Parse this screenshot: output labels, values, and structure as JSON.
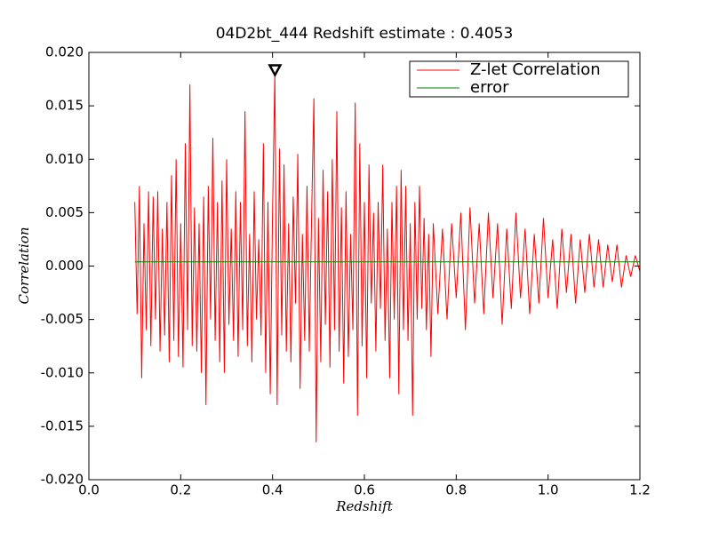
{
  "chart_data": {
    "type": "line",
    "title": "04D2bt_444 Redshift estimate : 0.4053",
    "x_label": "Redshift",
    "y_label": "Correlation",
    "xlim": [
      0,
      1.2
    ],
    "ylim": [
      -0.02,
      0.02
    ],
    "xticks": [
      {
        "value": 0,
        "label": "0.0"
      },
      0.2,
      0.4,
      0.6,
      0.8,
      {
        "value": 1,
        "label": "1.0"
      },
      1.2
    ],
    "yticks": [
      {
        "value": -0.02,
        "label": "-0.020"
      },
      {
        "value": -0.015,
        "label": "-0.015"
      },
      {
        "value": -0.01,
        "label": "-0.010"
      },
      {
        "value": -0.005,
        "label": "-0.005"
      },
      {
        "value": 0,
        "label": "0.000"
      },
      {
        "value": 0.005,
        "label": "0.005"
      },
      {
        "value": 0.01,
        "label": "0.010"
      },
      {
        "value": 0.015,
        "label": "0.015"
      },
      {
        "value": 0.02,
        "label": "0.020"
      }
    ],
    "legend": "upper right",
    "marker": {
      "x": 0.4053,
      "y": 0.0183
    },
    "series": [
      {
        "name": "Z-let Correlation",
        "color": "#ff0000",
        "x": [
          0.1,
          0.105,
          0.11,
          0.115,
          0.12,
          0.125,
          0.13,
          0.135,
          0.14,
          0.145,
          0.15,
          0.155,
          0.16,
          0.165,
          0.17,
          0.175,
          0.18,
          0.185,
          0.19,
          0.195,
          0.2,
          0.205,
          0.21,
          0.215,
          0.22,
          0.225,
          0.23,
          0.235,
          0.24,
          0.245,
          0.25,
          0.255,
          0.26,
          0.265,
          0.27,
          0.275,
          0.28,
          0.285,
          0.29,
          0.295,
          0.3,
          0.305,
          0.31,
          0.315,
          0.32,
          0.325,
          0.33,
          0.335,
          0.34,
          0.345,
          0.35,
          0.355,
          0.36,
          0.365,
          0.37,
          0.375,
          0.38,
          0.385,
          0.39,
          0.395,
          0.4,
          0.405,
          0.41,
          0.415,
          0.42,
          0.425,
          0.43,
          0.435,
          0.44,
          0.445,
          0.45,
          0.455,
          0.46,
          0.465,
          0.47,
          0.475,
          0.48,
          0.485,
          0.49,
          0.495,
          0.5,
          0.505,
          0.51,
          0.515,
          0.52,
          0.525,
          0.53,
          0.535,
          0.54,
          0.545,
          0.55,
          0.555,
          0.56,
          0.565,
          0.57,
          0.575,
          0.58,
          0.585,
          0.59,
          0.595,
          0.6,
          0.605,
          0.61,
          0.615,
          0.62,
          0.625,
          0.63,
          0.635,
          0.64,
          0.645,
          0.65,
          0.655,
          0.66,
          0.665,
          0.67,
          0.675,
          0.68,
          0.685,
          0.69,
          0.695,
          0.7,
          0.705,
          0.71,
          0.715,
          0.72,
          0.725,
          0.73,
          0.735,
          0.74,
          0.745,
          0.75,
          0.76,
          0.77,
          0.78,
          0.79,
          0.8,
          0.81,
          0.82,
          0.83,
          0.84,
          0.85,
          0.86,
          0.87,
          0.88,
          0.89,
          0.9,
          0.91,
          0.92,
          0.93,
          0.94,
          0.95,
          0.96,
          0.97,
          0.98,
          0.99,
          1.0,
          1.01,
          1.02,
          1.03,
          1.04,
          1.05,
          1.06,
          1.07,
          1.08,
          1.09,
          1.1,
          1.11,
          1.12,
          1.13,
          1.14,
          1.15,
          1.16,
          1.17,
          1.18,
          1.19,
          1.2
        ],
        "values": [
          0.006,
          -0.0045,
          0.0075,
          -0.0105,
          0.004,
          -0.006,
          0.007,
          -0.0075,
          0.0065,
          -0.005,
          0.007,
          -0.008,
          0.0035,
          -0.0065,
          0.006,
          -0.009,
          0.0085,
          -0.007,
          0.01,
          -0.0085,
          0.004,
          -0.0095,
          0.0115,
          -0.006,
          0.017,
          -0.0075,
          0.0055,
          -0.008,
          0.004,
          -0.01,
          0.0065,
          -0.013,
          0.0075,
          -0.005,
          0.012,
          -0.007,
          0.006,
          -0.009,
          0.008,
          -0.01,
          0.01,
          -0.0055,
          0.0035,
          -0.007,
          0.007,
          -0.0085,
          0.006,
          -0.006,
          0.0145,
          -0.0075,
          0.003,
          -0.009,
          0.007,
          -0.005,
          0.0025,
          -0.0065,
          0.0115,
          -0.01,
          0.006,
          -0.012,
          0.005,
          0.018,
          -0.013,
          0.011,
          -0.0065,
          0.0095,
          -0.008,
          0.004,
          -0.009,
          0.0065,
          -0.0035,
          0.0105,
          -0.0115,
          0.003,
          -0.007,
          0.0075,
          -0.008,
          0.0045,
          0.0157,
          -0.0165,
          0.0045,
          -0.009,
          0.009,
          -0.0055,
          0.007,
          -0.0095,
          0.01,
          -0.006,
          0.0145,
          -0.008,
          0.0055,
          -0.011,
          0.007,
          -0.0085,
          0.003,
          -0.006,
          0.0153,
          -0.014,
          0.0115,
          -0.0075,
          0.006,
          -0.0105,
          0.0095,
          -0.0035,
          0.005,
          -0.008,
          0.006,
          -0.004,
          0.0095,
          -0.007,
          0.0035,
          -0.0105,
          0.006,
          -0.005,
          0.0075,
          -0.012,
          0.009,
          -0.006,
          0.0075,
          -0.007,
          0.004,
          -0.014,
          0.006,
          -0.005,
          0.0075,
          -0.004,
          0.0045,
          -0.006,
          0.003,
          -0.0085,
          0.004,
          -0.0045,
          0.0035,
          -0.005,
          0.004,
          -0.003,
          0.005,
          -0.006,
          0.0055,
          -0.0035,
          0.004,
          -0.0045,
          0.005,
          -0.003,
          0.004,
          -0.0055,
          0.0035,
          -0.004,
          0.005,
          -0.003,
          0.0035,
          -0.0045,
          0.003,
          -0.0035,
          0.0045,
          -0.003,
          0.0025,
          -0.004,
          0.0035,
          -0.0025,
          0.003,
          -0.0035,
          0.0025,
          -0.0025,
          0.003,
          -0.002,
          0.0025,
          -0.002,
          0.002,
          -0.0015,
          0.002,
          -0.002,
          0.001,
          -0.001,
          0.001,
          -0.0005
        ]
      },
      {
        "name": "error",
        "color": "#008000",
        "x": [
          0.1,
          1.2
        ],
        "values": [
          0.0004,
          0.0004
        ]
      }
    ]
  }
}
